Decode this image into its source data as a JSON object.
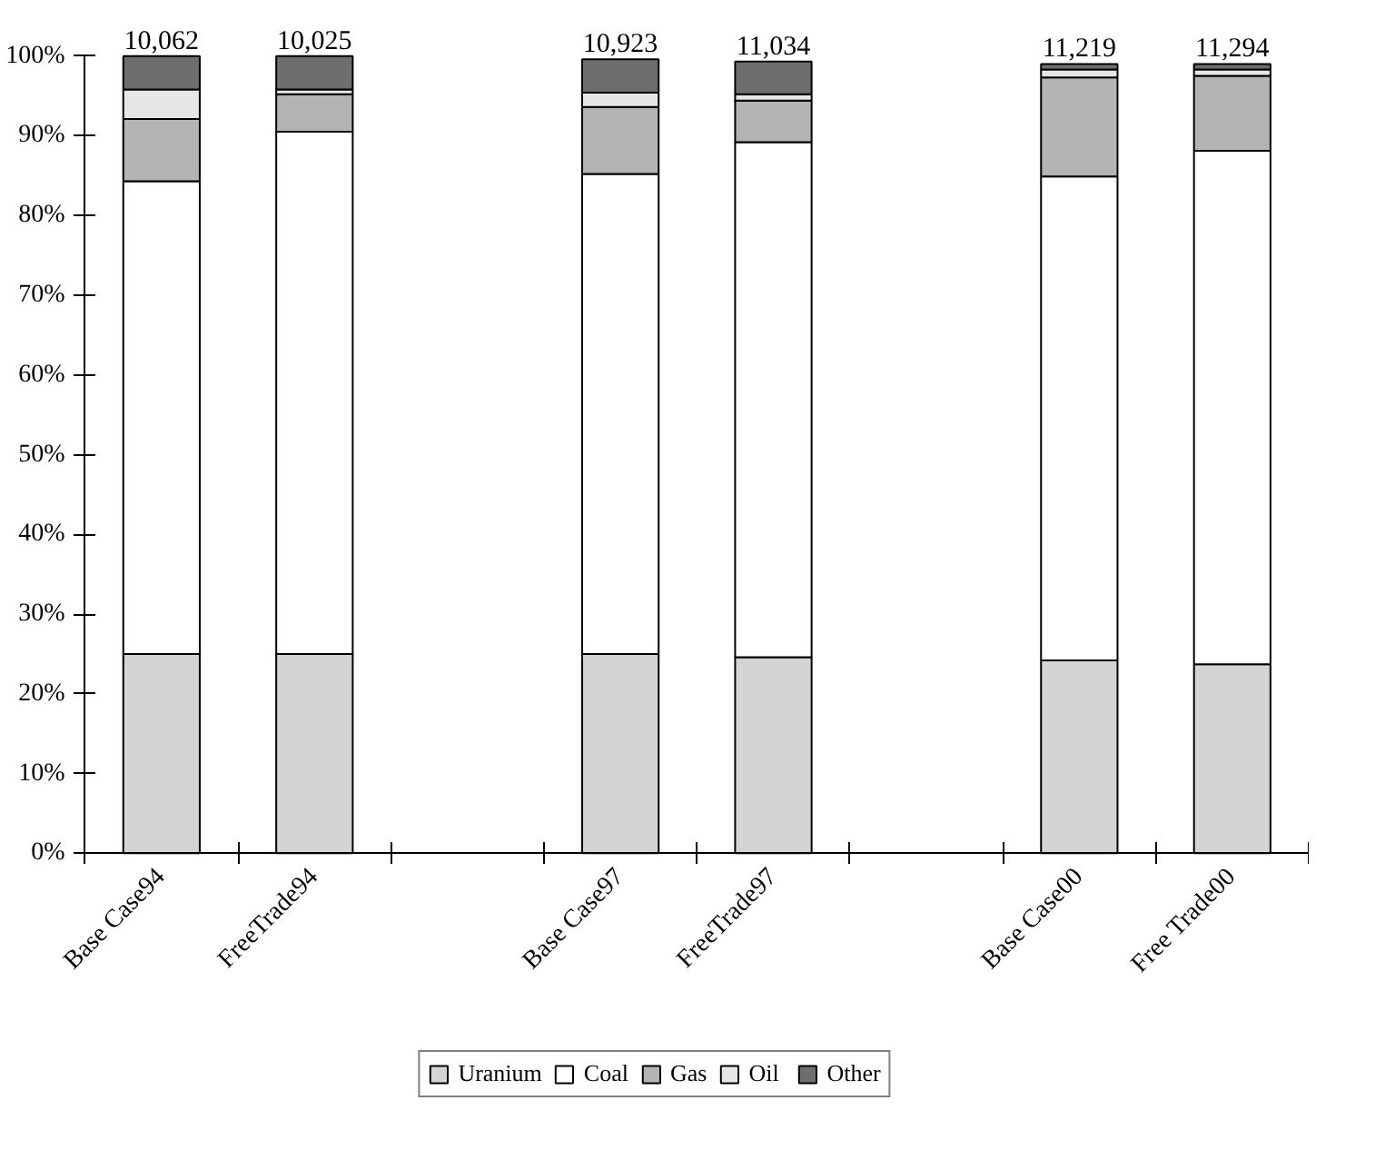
{
  "chart_data": {
    "type": "bar",
    "stacked": true,
    "categories": [
      "Base Case94",
      "FreeTrade94",
      null,
      "Base Case97",
      "FreeTrade97",
      null,
      "Base Case00",
      "Free Trade00"
    ],
    "series": [
      {
        "name": "Uranium",
        "color": "#d4d4d4",
        "values": [
          25.0,
          25.0,
          null,
          25.0,
          24.6,
          null,
          24.2,
          23.7
        ]
      },
      {
        "name": "Coal",
        "color": "#ffffff",
        "values": [
          59.3,
          65.5,
          null,
          60.2,
          64.6,
          null,
          60.7,
          64.4
        ]
      },
      {
        "name": "Gas",
        "color": "#b4b4b4",
        "values": [
          7.8,
          4.7,
          null,
          8.4,
          5.2,
          null,
          12.4,
          9.4
        ]
      },
      {
        "name": "Oil",
        "color": "#e6e6e6",
        "values": [
          3.7,
          0.6,
          null,
          1.8,
          0.8,
          null,
          1.0,
          0.8
        ]
      },
      {
        "name": "Other",
        "color": "#6e6e6e",
        "values": [
          4.2,
          4.2,
          null,
          4.2,
          4.1,
          null,
          0.7,
          0.7
        ]
      }
    ],
    "annotations": [
      {
        "text": "10,062",
        "x": "Base Case94",
        "y": 100
      },
      {
        "text": "10,025",
        "x": "FreeTrade94",
        "y": 100
      },
      {
        "text": "10,923",
        "x": "Base Case97",
        "y": 99.6
      },
      {
        "text": "11,034",
        "x": "FreeTrade97",
        "y": 99.3
      },
      {
        "text": "11,219",
        "x": "Base Case00",
        "y": 99.0
      },
      {
        "text": "11,294",
        "x": "Free Trade00",
        "y": 99.0
      }
    ],
    "ylim": [
      0,
      100
    ],
    "yticks": [
      {
        "value": 0,
        "label": "0%"
      },
      {
        "value": 10,
        "label": "10%"
      },
      {
        "value": 20,
        "label": "20%"
      },
      {
        "value": 30,
        "label": "30%"
      },
      {
        "value": 40,
        "label": "40%"
      },
      {
        "value": 50,
        "label": "50%"
      },
      {
        "value": 60,
        "label": "60%"
      },
      {
        "value": 70,
        "label": "70%"
      },
      {
        "value": 80,
        "label": "80%"
      },
      {
        "value": 90,
        "label": "90%"
      },
      {
        "value": 100,
        "label": "100%"
      }
    ],
    "grid": false,
    "legend": "bottom"
  }
}
